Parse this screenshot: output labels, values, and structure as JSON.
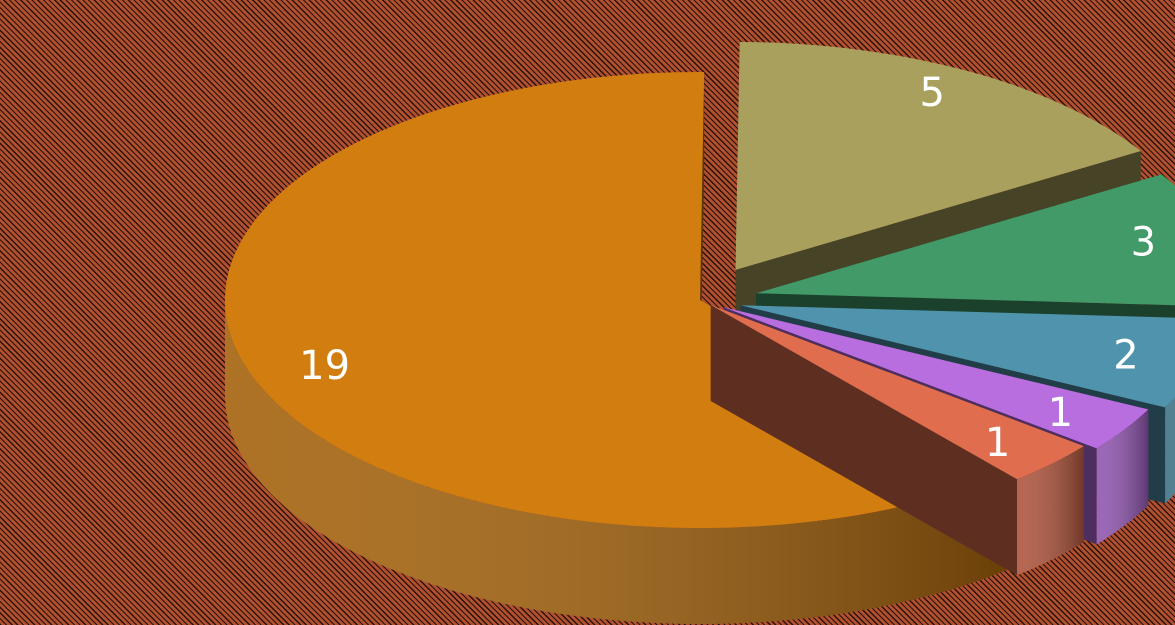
{
  "chart_data": {
    "type": "pie",
    "style": "3d-exploded",
    "values": [
      19,
      1,
      1,
      2,
      3,
      5
    ],
    "labels": [
      "",
      "",
      "",
      "",
      "",
      ""
    ],
    "data_labels": [
      "19",
      "1",
      "1",
      "2",
      "3",
      "5"
    ],
    "colors": [
      "#d27d10",
      "#df6d4e",
      "#b96ee0",
      "#4f94ac",
      "#419a68",
      "#a9a05e"
    ],
    "title": "",
    "legend": "none"
  }
}
